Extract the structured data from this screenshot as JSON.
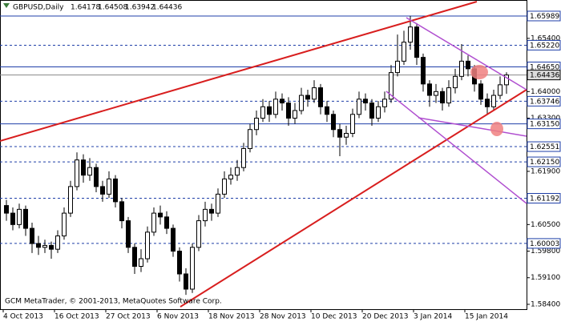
{
  "chart_data": {
    "type": "candlestick",
    "title": "GBPUSD,Daily",
    "footer": "GCM MetaTrader, © 2001-2013, MetaQuotes Software Corp.",
    "categories": [
      "4 Oct 2013",
      null,
      null,
      null,
      null,
      null,
      null,
      null,
      "16 Oct 2013",
      null,
      null,
      null,
      null,
      null,
      null,
      null,
      "27 Oct 2013",
      null,
      null,
      null,
      null,
      null,
      null,
      null,
      "6 Nov 2013",
      null,
      null,
      null,
      null,
      null,
      null,
      null,
      "18 Nov 2013",
      null,
      null,
      null,
      null,
      null,
      null,
      null,
      "28 Nov 2013",
      null,
      null,
      null,
      null,
      null,
      null,
      null,
      "10 Dec 2013",
      null,
      null,
      null,
      null,
      null,
      null,
      null,
      "20 Dec 2013",
      null,
      null,
      null,
      null,
      null,
      null,
      null,
      "3 Jan 2014",
      null,
      null,
      null,
      null,
      null,
      null,
      null,
      "15 Jan 2014",
      null,
      null,
      null,
      null,
      null,
      null
    ],
    "open": [
      1.61,
      1.608,
      1.605,
      1.609,
      1.604,
      1.6,
      1.599,
      1.5995,
      1.5985,
      1.602,
      1.608,
      1.615,
      1.622,
      1.618,
      1.62,
      1.615,
      1.613,
      1.617,
      1.611,
      1.606,
      1.599,
      1.594,
      1.596,
      1.603,
      1.608,
      1.607,
      1.604,
      1.598,
      1.592,
      1.588,
      1.599,
      1.606,
      1.609,
      1.608,
      1.613,
      1.617,
      1.618,
      1.62,
      1.625,
      1.63,
      1.633,
      1.636,
      1.634,
      1.638,
      1.637,
      1.633,
      1.635,
      1.639,
      1.638,
      1.641,
      1.636,
      1.634,
      1.63,
      1.628,
      1.629,
      1.634,
      1.638,
      1.637,
      1.633,
      1.636,
      1.638,
      1.645,
      1.648,
      1.653,
      1.657,
      1.649,
      1.642,
      1.639,
      1.64,
      1.637,
      1.641,
      1.644,
      1.648,
      1.646,
      1.642,
      1.638,
      1.636,
      1.639,
      1.64178
    ],
    "high": [
      1.6115,
      1.6095,
      1.6105,
      1.61,
      1.6055,
      1.602,
      1.601,
      1.6005,
      1.6035,
      1.6095,
      1.6165,
      1.624,
      1.6235,
      1.6225,
      1.621,
      1.6165,
      1.619,
      1.618,
      1.612,
      1.607,
      1.6,
      1.5985,
      1.6045,
      1.6095,
      1.61,
      1.6085,
      1.605,
      1.599,
      1.5935,
      1.6,
      1.6075,
      1.611,
      1.6105,
      1.6145,
      1.619,
      1.62,
      1.622,
      1.6265,
      1.6315,
      1.635,
      1.638,
      1.6375,
      1.64,
      1.6395,
      1.6385,
      1.637,
      1.641,
      1.6405,
      1.643,
      1.642,
      1.6375,
      1.635,
      1.6315,
      1.631,
      1.6355,
      1.64,
      1.6395,
      1.638,
      1.6375,
      1.64,
      1.647,
      1.655,
      1.656,
      1.6599,
      1.658,
      1.65,
      1.643,
      1.642,
      1.641,
      1.643,
      1.646,
      1.6525,
      1.6495,
      1.647,
      1.643,
      1.6395,
      1.6405,
      1.644,
      1.64508
    ],
    "low": [
      1.606,
      1.6035,
      1.604,
      1.602,
      1.5975,
      1.597,
      1.5975,
      1.596,
      1.5975,
      1.601,
      1.607,
      1.614,
      1.616,
      1.6165,
      1.6135,
      1.611,
      1.612,
      1.6095,
      1.604,
      1.5975,
      1.592,
      1.5925,
      1.595,
      1.602,
      1.605,
      1.6025,
      1.5965,
      1.59,
      1.5865,
      1.587,
      1.598,
      1.6045,
      1.606,
      1.607,
      1.612,
      1.6155,
      1.6165,
      1.619,
      1.624,
      1.6285,
      1.632,
      1.632,
      1.633,
      1.635,
      1.631,
      1.6315,
      1.634,
      1.636,
      1.637,
      1.634,
      1.632,
      1.628,
      1.623,
      1.626,
      1.628,
      1.633,
      1.635,
      1.631,
      1.632,
      1.6345,
      1.637,
      1.644,
      1.647,
      1.651,
      1.647,
      1.64,
      1.636,
      1.637,
      1.635,
      1.636,
      1.6395,
      1.643,
      1.644,
      1.64,
      1.6365,
      1.634,
      1.635,
      1.638,
      1.63942
    ],
    "close": [
      1.608,
      1.605,
      1.609,
      1.604,
      1.6,
      1.599,
      1.5995,
      1.5985,
      1.602,
      1.608,
      1.615,
      1.622,
      1.618,
      1.62,
      1.615,
      1.613,
      1.617,
      1.611,
      1.606,
      1.599,
      1.594,
      1.596,
      1.603,
      1.608,
      1.607,
      1.604,
      1.598,
      1.592,
      1.588,
      1.599,
      1.606,
      1.609,
      1.608,
      1.613,
      1.617,
      1.618,
      1.62,
      1.625,
      1.63,
      1.633,
      1.636,
      1.634,
      1.638,
      1.637,
      1.633,
      1.635,
      1.639,
      1.638,
      1.641,
      1.636,
      1.634,
      1.63,
      1.628,
      1.629,
      1.634,
      1.638,
      1.637,
      1.633,
      1.636,
      1.638,
      1.645,
      1.648,
      1.653,
      1.657,
      1.649,
      1.642,
      1.639,
      1.64,
      1.637,
      1.641,
      1.644,
      1.648,
      1.646,
      1.642,
      1.638,
      1.636,
      1.639,
      1.64178,
      1.64436
    ],
    "ylim": [
      1.5823,
      1.6641
    ],
    "yticks": [
      {
        "value": 1.654,
        "label": "1.65400"
      },
      {
        "value": 1.64,
        "label": "1.64000"
      },
      {
        "value": 1.633,
        "label": "1.63300"
      },
      {
        "value": 1.619,
        "label": "1.61900"
      },
      {
        "value": 1.605,
        "label": "1.60500"
      },
      {
        "value": 1.598,
        "label": "1.59800"
      },
      {
        "value": 1.591,
        "label": "1.59100"
      },
      {
        "value": 1.584,
        "label": "1.58400"
      }
    ],
    "levels": [
      {
        "value": 1.65989,
        "label": "1.65989",
        "dashed": false
      },
      {
        "value": 1.6522,
        "label": "1.65220",
        "dashed": true
      },
      {
        "value": 1.6465,
        "label": "1.64650",
        "dashed": false
      },
      {
        "value": 1.63746,
        "label": "1.63746",
        "dashed": true
      },
      {
        "value": 1.6315,
        "label": "1.63150",
        "dashed": false
      },
      {
        "value": 1.62551,
        "label": "1.62551",
        "dashed": true
      },
      {
        "value": 1.6215,
        "label": "1.62150",
        "dashed": true
      },
      {
        "value": 1.61192,
        "label": "1.61192",
        "dashed": true
      },
      {
        "value": 1.60003,
        "label": "1.60003",
        "dashed": true
      }
    ],
    "up_color": "#ffffff",
    "down_color": "#000000",
    "level_color": "#1f3fa8"
  }
}
